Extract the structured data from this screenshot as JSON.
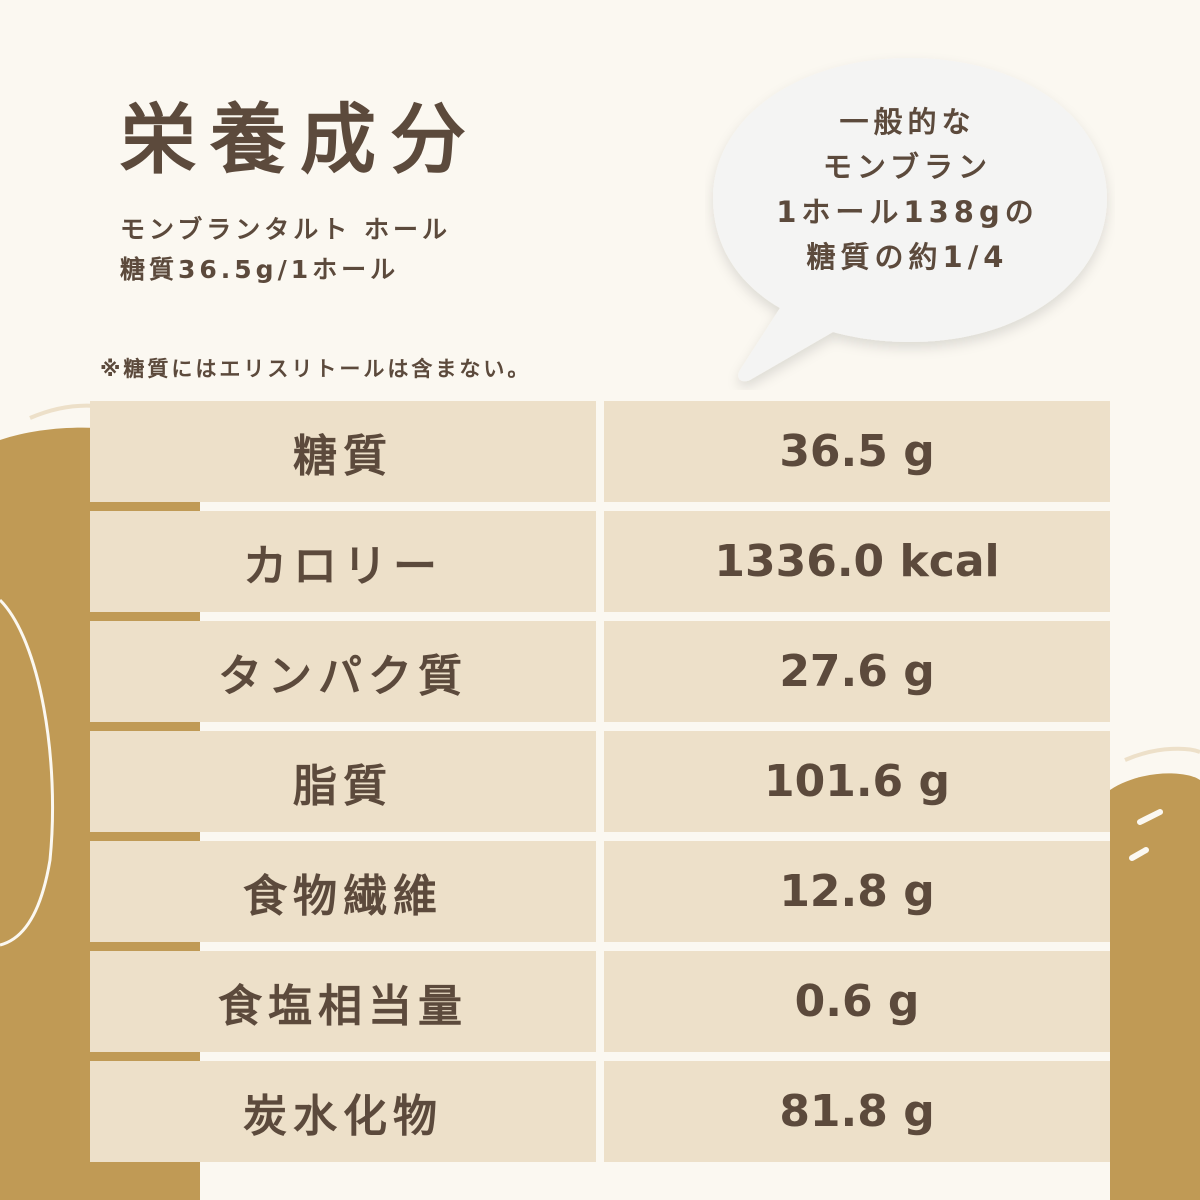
{
  "title": "栄養成分",
  "subtitle_lines": [
    "モンブランタルト ホール",
    "糖質36.5g/1ホール"
  ],
  "note": "※糖質にはエリスリトールは含まない。",
  "bubble_lines": [
    "一般的な",
    "モンブラン",
    "1ホール138gの",
    "糖質の約1/4"
  ],
  "nutrition": [
    {
      "label": "糖質",
      "value": "36.5 g"
    },
    {
      "label": "カロリー",
      "value": "1336.0 kcal"
    },
    {
      "label": "タンパク質",
      "value": "27.6 g"
    },
    {
      "label": "脂質",
      "value": "101.6 g"
    },
    {
      "label": "食物繊維",
      "value": "12.8 g"
    },
    {
      "label": "食塩相当量",
      "value": "0.6 g"
    },
    {
      "label": "炭水化物",
      "value": "81.8 g"
    }
  ],
  "colors": {
    "background": "#fbf8f1",
    "cell": "#ede0c9",
    "blob": "#c09a55",
    "text": "#5c4a3c",
    "bubble": "#f4f4f3"
  }
}
